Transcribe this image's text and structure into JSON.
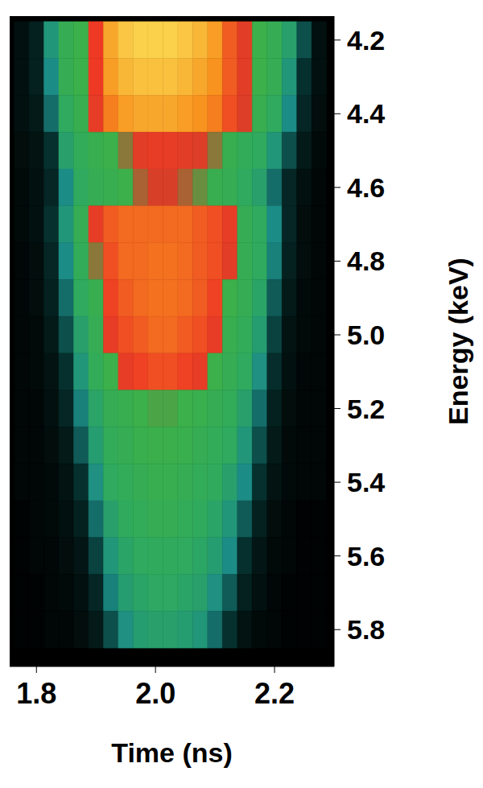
{
  "chart_data": {
    "type": "heatmap",
    "x_label": "Time (ns)",
    "y_label": "Energy (keV)",
    "x": [
      1.775,
      1.8,
      1.825,
      1.85,
      1.875,
      1.9,
      1.925,
      1.95,
      1.975,
      2.0,
      2.025,
      2.05,
      2.075,
      2.1,
      2.125,
      2.15,
      2.175,
      2.2,
      2.225,
      2.25,
      2.275
    ],
    "y": [
      4.2,
      4.3,
      4.4,
      4.5,
      4.6,
      4.7,
      4.8,
      4.9,
      5.0,
      5.1,
      5.2,
      5.3,
      5.4,
      5.5,
      5.6,
      5.7,
      5.8
    ],
    "values": [
      [
        0.05,
        0.1,
        0.35,
        0.5,
        0.55,
        0.75,
        0.92,
        0.98,
        1.0,
        1.0,
        1.0,
        0.98,
        0.95,
        0.9,
        0.8,
        0.7,
        0.55,
        0.5,
        0.4,
        0.2,
        0.05
      ],
      [
        0.05,
        0.1,
        0.3,
        0.5,
        0.55,
        0.75,
        0.9,
        0.95,
        0.97,
        0.97,
        0.97,
        0.95,
        0.92,
        0.88,
        0.8,
        0.7,
        0.55,
        0.5,
        0.35,
        0.15,
        0.05
      ],
      [
        0.05,
        0.08,
        0.25,
        0.45,
        0.52,
        0.72,
        0.85,
        0.9,
        0.92,
        0.92,
        0.92,
        0.9,
        0.88,
        0.85,
        0.78,
        0.68,
        0.52,
        0.45,
        0.3,
        0.12,
        0.04
      ],
      [
        0.04,
        0.06,
        0.15,
        0.4,
        0.48,
        0.52,
        0.55,
        0.6,
        0.7,
        0.72,
        0.72,
        0.7,
        0.68,
        0.6,
        0.52,
        0.48,
        0.45,
        0.35,
        0.2,
        0.08,
        0.03
      ],
      [
        0.03,
        0.05,
        0.12,
        0.3,
        0.45,
        0.5,
        0.52,
        0.55,
        0.62,
        0.66,
        0.66,
        0.62,
        0.58,
        0.52,
        0.5,
        0.45,
        0.4,
        0.25,
        0.12,
        0.05,
        0.02
      ],
      [
        0.03,
        0.05,
        0.15,
        0.35,
        0.5,
        0.72,
        0.8,
        0.82,
        0.82,
        0.82,
        0.82,
        0.82,
        0.8,
        0.78,
        0.72,
        0.5,
        0.45,
        0.3,
        0.12,
        0.04,
        0.02
      ],
      [
        0.02,
        0.04,
        0.12,
        0.3,
        0.48,
        0.6,
        0.78,
        0.82,
        0.82,
        0.83,
        0.83,
        0.82,
        0.8,
        0.78,
        0.7,
        0.5,
        0.45,
        0.28,
        0.1,
        0.04,
        0.02
      ],
      [
        0.02,
        0.04,
        0.1,
        0.25,
        0.45,
        0.52,
        0.76,
        0.8,
        0.82,
        0.83,
        0.83,
        0.82,
        0.8,
        0.76,
        0.55,
        0.5,
        0.42,
        0.22,
        0.08,
        0.03,
        0.02
      ],
      [
        0.02,
        0.03,
        0.08,
        0.2,
        0.4,
        0.5,
        0.72,
        0.78,
        0.8,
        0.82,
        0.82,
        0.8,
        0.78,
        0.72,
        0.52,
        0.48,
        0.38,
        0.18,
        0.06,
        0.03,
        0.02
      ],
      [
        0.02,
        0.03,
        0.06,
        0.15,
        0.35,
        0.48,
        0.55,
        0.72,
        0.76,
        0.78,
        0.78,
        0.76,
        0.72,
        0.55,
        0.5,
        0.45,
        0.32,
        0.14,
        0.05,
        0.02,
        0.02
      ],
      [
        0.02,
        0.02,
        0.05,
        0.12,
        0.28,
        0.42,
        0.5,
        0.52,
        0.55,
        0.56,
        0.56,
        0.55,
        0.53,
        0.5,
        0.48,
        0.4,
        0.25,
        0.1,
        0.04,
        0.02,
        0.02
      ],
      [
        0.02,
        0.02,
        0.04,
        0.08,
        0.22,
        0.38,
        0.48,
        0.5,
        0.53,
        0.54,
        0.54,
        0.53,
        0.5,
        0.48,
        0.45,
        0.35,
        0.2,
        0.08,
        0.03,
        0.02,
        0.02
      ],
      [
        0.02,
        0.02,
        0.03,
        0.06,
        0.15,
        0.32,
        0.45,
        0.48,
        0.5,
        0.52,
        0.52,
        0.5,
        0.48,
        0.46,
        0.4,
        0.3,
        0.15,
        0.06,
        0.03,
        0.02,
        0.02
      ],
      [
        0.01,
        0.02,
        0.03,
        0.05,
        0.1,
        0.25,
        0.4,
        0.46,
        0.48,
        0.5,
        0.5,
        0.48,
        0.46,
        0.42,
        0.35,
        0.22,
        0.1,
        0.04,
        0.02,
        0.01,
        0.01
      ],
      [
        0.01,
        0.02,
        0.02,
        0.04,
        0.07,
        0.18,
        0.35,
        0.42,
        0.45,
        0.46,
        0.46,
        0.45,
        0.43,
        0.38,
        0.3,
        0.15,
        0.07,
        0.03,
        0.02,
        0.01,
        0.01
      ],
      [
        0.01,
        0.01,
        0.02,
        0.03,
        0.05,
        0.12,
        0.28,
        0.38,
        0.42,
        0.44,
        0.44,
        0.42,
        0.4,
        0.32,
        0.22,
        0.1,
        0.05,
        0.02,
        0.01,
        0.01,
        0.01
      ],
      [
        0.01,
        0.01,
        0.02,
        0.02,
        0.04,
        0.08,
        0.2,
        0.32,
        0.38,
        0.4,
        0.4,
        0.38,
        0.35,
        0.25,
        0.15,
        0.06,
        0.03,
        0.02,
        0.01,
        0.01,
        0.01
      ]
    ],
    "xlim": [
      1.755,
      2.3
    ],
    "ylim": [
      4.135,
      5.9
    ],
    "xticks": [
      1.8,
      {
        "value": 2,
        "label": "2.0"
      },
      2.2
    ],
    "yticks": [
      4.2,
      4.4,
      4.6,
      4.8,
      {
        "value": 5,
        "label": "5.0"
      },
      5.2,
      5.4,
      5.6,
      5.8
    ],
    "zlim": [
      0,
      1
    ]
  }
}
